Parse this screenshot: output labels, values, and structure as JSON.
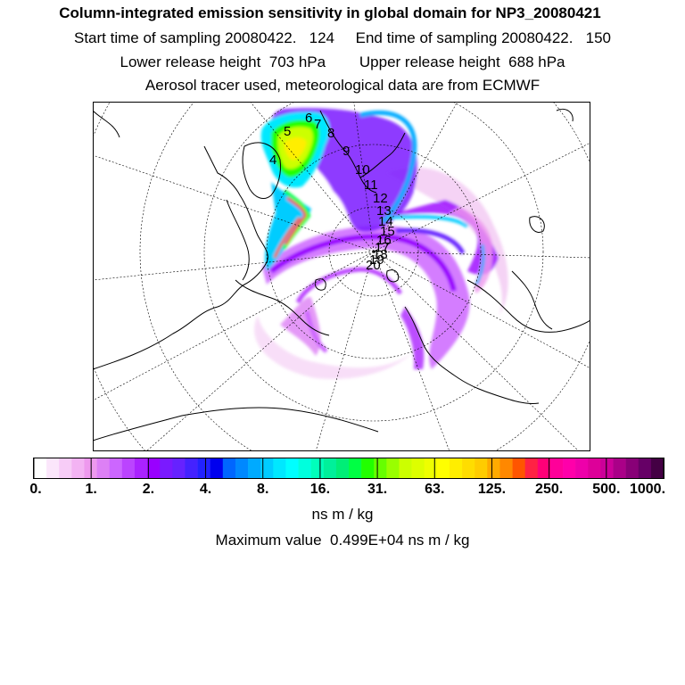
{
  "header": {
    "title": "Column-integrated emission sensitivity in global domain for NP3_20080421",
    "sampling_line": "Start time of sampling 20080422.   124     End time of sampling 20080422.   150",
    "release_line": "Lower release height  703 hPa        Upper release height  688 hPa",
    "info_line": "Aerosol tracer used, meteorological data are from ECMWF"
  },
  "map": {
    "projection": "north-polar-stereographic",
    "track_labels": [
      "4",
      "5",
      "6",
      "7",
      "8",
      "9",
      "10",
      "11",
      "12",
      "13",
      "14",
      "15",
      "16",
      "17",
      "18",
      "19",
      "20"
    ],
    "colors": {
      "coast": "#000000",
      "grid": "#000000"
    }
  },
  "colorbar": {
    "tick_labels": [
      "0.",
      "1.",
      "2.",
      "4.",
      "8.",
      "16.",
      "31.",
      "63.",
      "125.",
      "250.",
      "500.",
      "1000."
    ],
    "colors": [
      "#ffffff",
      "#fbe6fb",
      "#f7ccf7",
      "#f3b3f3",
      "#ee99ee",
      "#dd80f5",
      "#cc66ff",
      "#bb44ff",
      "#aa22ff",
      "#9900ff",
      "#7a1aff",
      "#6622ff",
      "#4422ff",
      "#2222ff",
      "#0000ee",
      "#0066ff",
      "#0088ff",
      "#00aaff",
      "#00ccff",
      "#00e8ff",
      "#00ffff",
      "#00ffdd",
      "#00ffbb",
      "#00f09a",
      "#00ee77",
      "#00ff44",
      "#22ff00",
      "#66ff00",
      "#99ff00",
      "#ccff00",
      "#ddff00",
      "#eeff00",
      "#ffff00",
      "#ffee00",
      "#ffdd00",
      "#ffcc00",
      "#ffaa00",
      "#ff8800",
      "#ff5500",
      "#ff2244",
      "#ff0077",
      "#ff0099",
      "#ff00aa",
      "#ee00aa",
      "#dd0099",
      "#cc0099",
      "#aa0088",
      "#880077",
      "#660066",
      "#440044"
    ],
    "units": "ns m / kg"
  },
  "footer": {
    "max_value": "Maximum value  0.499E+04 ns m / kg"
  }
}
